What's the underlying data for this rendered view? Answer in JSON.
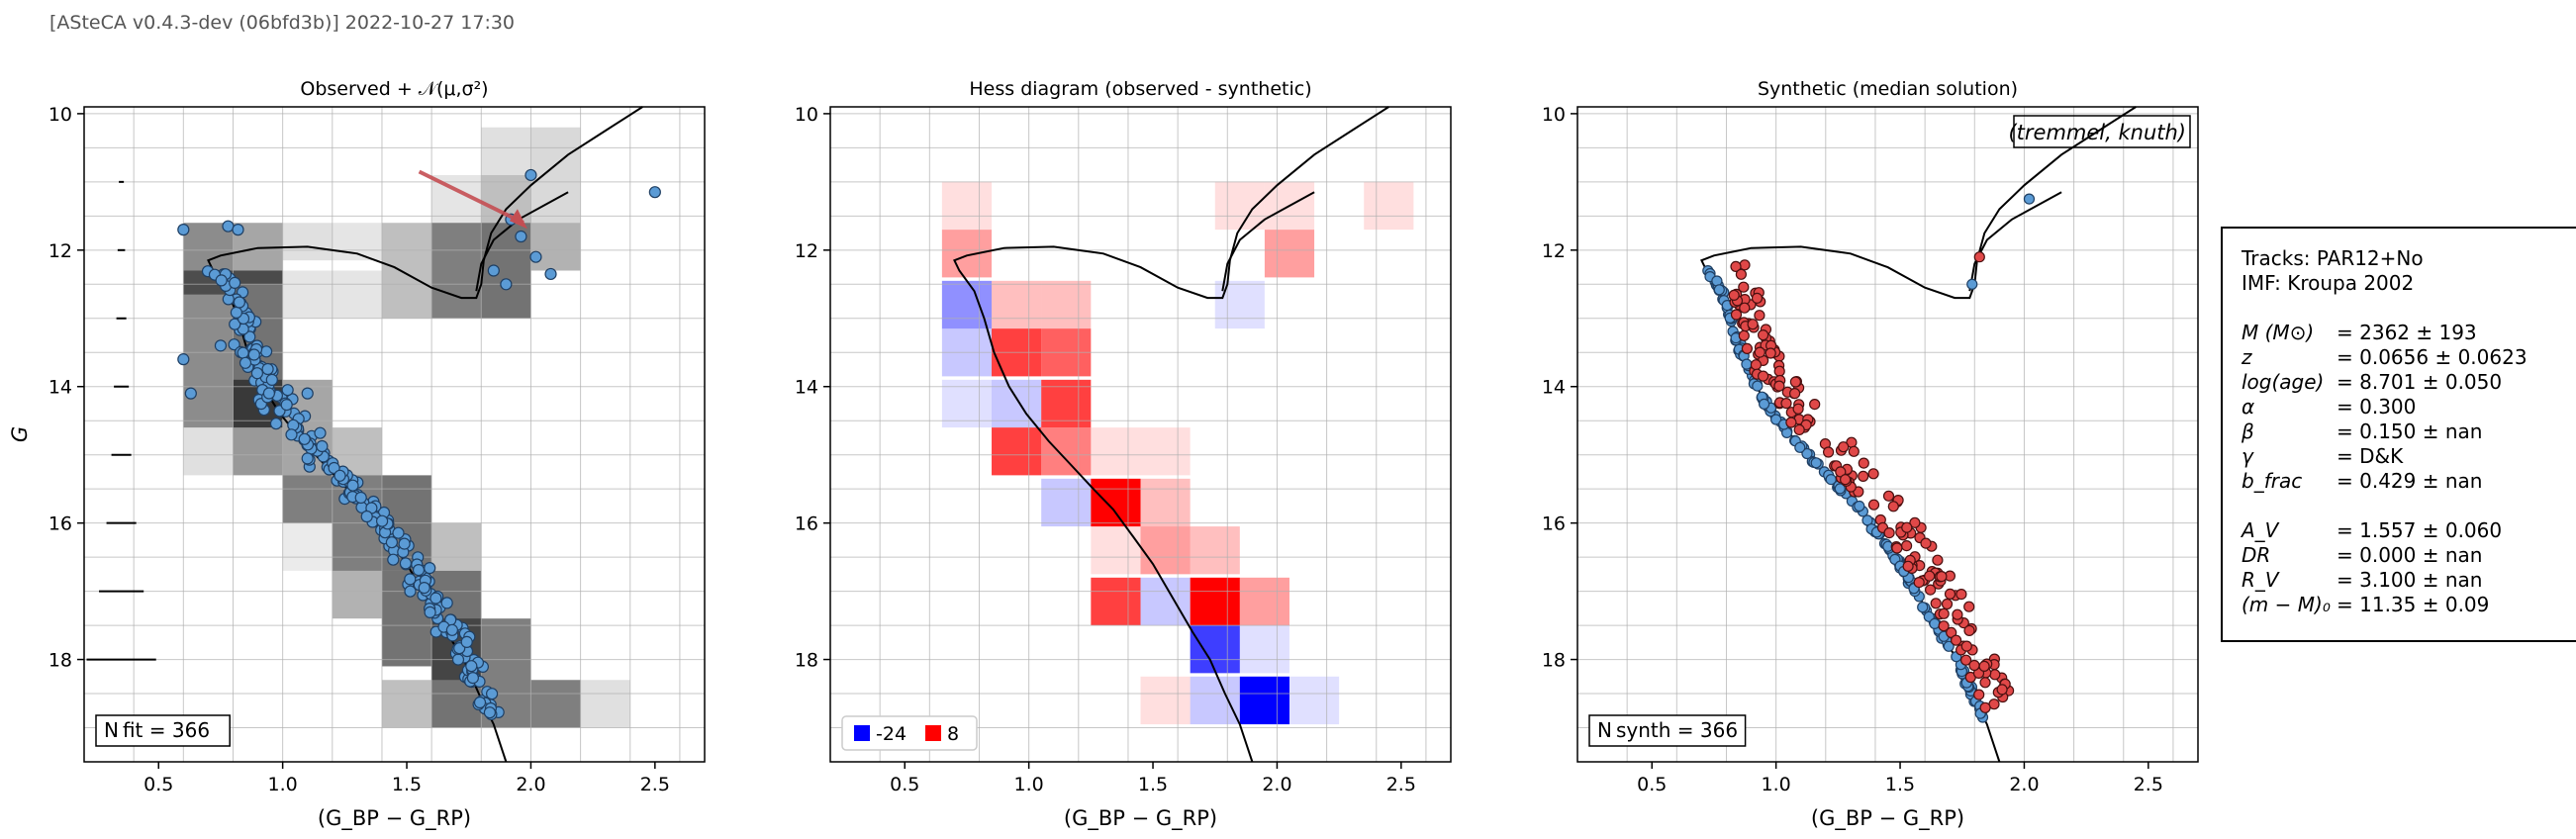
{
  "header": "[ASteCA v0.4.3-dev (06bfd3b)] 2022-10-27 17:30",
  "chart_data": [
    {
      "type": "scatter",
      "title": "Observed + 𝒩(μ,σ²)",
      "xlabel": "(G_BP − G_RP)",
      "ylabel": "G",
      "xlim": [
        0.2,
        2.7
      ],
      "ylim": [
        19.5,
        9.9
      ],
      "xticks": [
        "0.5",
        "1.0",
        "1.5",
        "2.0",
        "2.5"
      ],
      "yticks": [
        "10",
        "12",
        "14",
        "16",
        "18"
      ],
      "annotation": "N_fit = 366",
      "series": [
        {
          "name": "observed",
          "color": "#5b9bd5",
          "n_points": 366
        }
      ],
      "hess_background": "grey density bins",
      "uncertainty_ticks_x": 0.35,
      "arrow": {
        "from": [
          1.55,
          10.85
        ],
        "to": [
          1.97,
          11.6
        ],
        "color": "#c44e52"
      },
      "grid": true
    },
    {
      "type": "heatmap",
      "title": "Hess diagram (observed - synthetic)",
      "xlabel": "(G_BP − G_RP)",
      "xlim": [
        0.2,
        2.7
      ],
      "ylim": [
        19.5,
        9.9
      ],
      "xticks": [
        "0.5",
        "1.0",
        "1.5",
        "2.0",
        "2.5"
      ],
      "yticks": [
        "10",
        "12",
        "14",
        "16",
        "18"
      ],
      "legend": [
        {
          "label": "-24",
          "color": "#0000ff"
        },
        {
          "label": "8",
          "color": "#ff0000"
        }
      ],
      "cells": [
        {
          "x": 0.75,
          "y": 11.35,
          "v": 1
        },
        {
          "x": 1.85,
          "y": 11.35,
          "v": 1
        },
        {
          "x": 2.05,
          "y": 11.35,
          "v": 1
        },
        {
          "x": 2.45,
          "y": 11.35,
          "v": 1
        },
        {
          "x": 0.75,
          "y": 12.05,
          "v": 3
        },
        {
          "x": 2.05,
          "y": 12.05,
          "v": 3
        },
        {
          "x": 0.75,
          "y": 12.8,
          "v": -8
        },
        {
          "x": 0.95,
          "y": 12.8,
          "v": 2
        },
        {
          "x": 1.15,
          "y": 12.8,
          "v": 2
        },
        {
          "x": 1.85,
          "y": 12.8,
          "v": -2
        },
        {
          "x": 0.75,
          "y": 13.5,
          "v": -4
        },
        {
          "x": 0.95,
          "y": 13.5,
          "v": 6
        },
        {
          "x": 1.15,
          "y": 13.5,
          "v": 5
        },
        {
          "x": 0.75,
          "y": 14.25,
          "v": -1
        },
        {
          "x": 0.95,
          "y": 14.25,
          "v": -4
        },
        {
          "x": 1.15,
          "y": 14.25,
          "v": 6
        },
        {
          "x": 0.95,
          "y": 14.95,
          "v": 6
        },
        {
          "x": 1.15,
          "y": 14.95,
          "v": 4
        },
        {
          "x": 1.35,
          "y": 14.95,
          "v": 1
        },
        {
          "x": 1.55,
          "y": 14.95,
          "v": 1
        },
        {
          "x": 1.15,
          "y": 15.7,
          "v": -4
        },
        {
          "x": 1.35,
          "y": 15.7,
          "v": 8
        },
        {
          "x": 1.55,
          "y": 15.7,
          "v": 2
        },
        {
          "x": 1.35,
          "y": 16.4,
          "v": 1
        },
        {
          "x": 1.55,
          "y": 16.4,
          "v": 3
        },
        {
          "x": 1.75,
          "y": 16.4,
          "v": 2
        },
        {
          "x": 1.35,
          "y": 17.15,
          "v": 6
        },
        {
          "x": 1.55,
          "y": 17.15,
          "v": -4
        },
        {
          "x": 1.75,
          "y": 17.15,
          "v": 8
        },
        {
          "x": 1.95,
          "y": 17.15,
          "v": 3
        },
        {
          "x": 1.75,
          "y": 17.85,
          "v": -14
        },
        {
          "x": 1.95,
          "y": 17.85,
          "v": -1
        },
        {
          "x": 1.55,
          "y": 18.6,
          "v": 1
        },
        {
          "x": 1.75,
          "y": 18.6,
          "v": -4
        },
        {
          "x": 1.95,
          "y": 18.6,
          "v": -24
        },
        {
          "x": 2.15,
          "y": 18.6,
          "v": -1
        }
      ],
      "grid": true
    },
    {
      "type": "scatter",
      "title": "Synthetic (median solution)",
      "xlabel": "(G_BP − G_RP)",
      "xlim": [
        0.2,
        2.7
      ],
      "ylim": [
        19.5,
        9.9
      ],
      "xticks": [
        "0.5",
        "1.0",
        "1.5",
        "2.0",
        "2.5"
      ],
      "yticks": [
        "10",
        "12",
        "14",
        "16",
        "18"
      ],
      "annotation": "N_synth = 366",
      "method_label": "(tremmel, knuth)",
      "series": [
        {
          "name": "single",
          "color": "#5b9bd5"
        },
        {
          "name": "binary",
          "color": "#e04848"
        }
      ],
      "grid": true
    }
  ],
  "info": {
    "tracks": "Tracks: PAR12+No",
    "imf": "IMF: Kroupa 2002",
    "params": [
      {
        "key": "M (M⊙)",
        "val": "= 2362 ± 193"
      },
      {
        "key": "z",
        "val": "= 0.0656 ± 0.0623"
      },
      {
        "key": "log(age)",
        "val": "= 8.701 ± 0.050"
      },
      {
        "key": "α",
        "val": "= 0.300"
      },
      {
        "key": "β",
        "val": "= 0.150 ± nan"
      },
      {
        "key": "γ",
        "val": "= D&K"
      },
      {
        "key": "b_frac",
        "val": "= 0.429 ± nan"
      }
    ],
    "params2": [
      {
        "key": "A_V",
        "val": "= 1.557 ± 0.060"
      },
      {
        "key": "DR",
        "val": "= 0.000 ± nan"
      },
      {
        "key": "R_V",
        "val": "= 3.100 ± nan"
      },
      {
        "key": "(m − M)₀",
        "val": "= 11.35 ± 0.09"
      }
    ]
  },
  "isochrone": [
    [
      2.45,
      9.9
    ],
    [
      2.3,
      10.25
    ],
    [
      2.15,
      10.6
    ],
    [
      2.0,
      11.05
    ],
    [
      1.9,
      11.4
    ],
    [
      1.84,
      11.75
    ],
    [
      1.81,
      12.15
    ],
    [
      1.8,
      12.5
    ],
    [
      1.78,
      12.7
    ],
    [
      1.72,
      12.7
    ],
    [
      1.6,
      12.55
    ],
    [
      1.45,
      12.25
    ],
    [
      1.3,
      12.05
    ],
    [
      1.1,
      11.95
    ],
    [
      0.9,
      11.97
    ],
    [
      0.75,
      12.08
    ],
    [
      0.7,
      12.15
    ],
    [
      0.72,
      12.3
    ],
    [
      0.78,
      12.6
    ],
    [
      0.82,
      13.0
    ],
    [
      0.86,
      13.5
    ],
    [
      0.92,
      14.0
    ],
    [
      0.99,
      14.4
    ],
    [
      1.08,
      14.8
    ],
    [
      1.17,
      15.15
    ],
    [
      1.26,
      15.5
    ],
    [
      1.34,
      15.8
    ],
    [
      1.42,
      16.2
    ],
    [
      1.5,
      16.6
    ],
    [
      1.58,
      17.1
    ],
    [
      1.66,
      17.6
    ],
    [
      1.73,
      18.0
    ],
    [
      1.79,
      18.5
    ],
    [
      1.85,
      18.95
    ],
    [
      1.9,
      19.5
    ]
  ],
  "isochrone_branch": [
    [
      1.78,
      12.6
    ],
    [
      1.8,
      12.2
    ],
    [
      1.85,
      11.85
    ],
    [
      1.95,
      11.55
    ],
    [
      2.05,
      11.35
    ],
    [
      2.15,
      11.15
    ]
  ]
}
